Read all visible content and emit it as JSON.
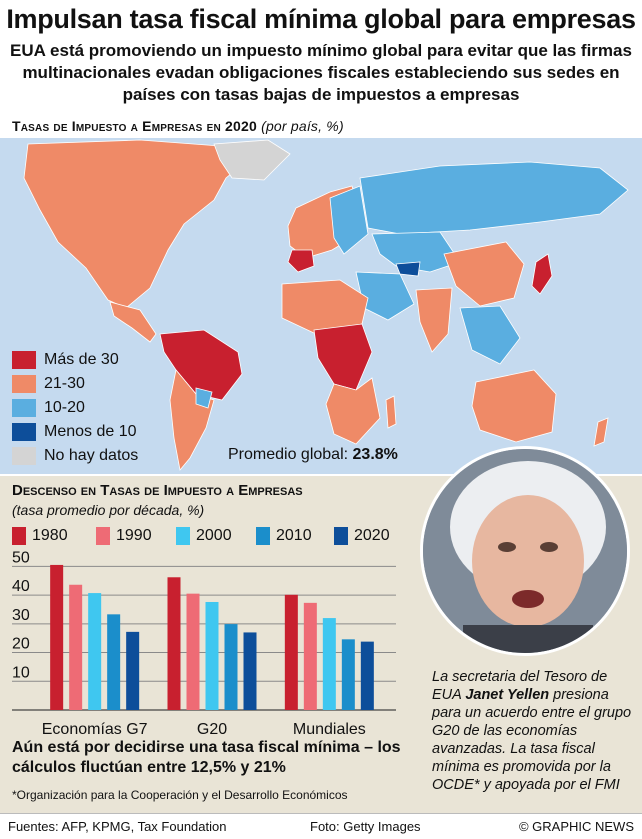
{
  "header": {
    "title": "Impulsan tasa fiscal mínima global para empresas",
    "subtitle": "EUA está promoviendo un impuesto mínimo global para evitar que las firmas multinacionales evadan obligaciones fiscales estableciendo sus sedes en países con tasas bajas de impuestos a empresas"
  },
  "map": {
    "title": "Tasas de Impuesto a Empresas en 2020",
    "title_note": "(por país, %)",
    "legend": [
      {
        "label": "Más de 30",
        "color": "#c8202f"
      },
      {
        "label": "21-30",
        "color": "#ef8a67"
      },
      {
        "label": "10-20",
        "color": "#5aaee0"
      },
      {
        "label": "Menos de 10",
        "color": "#0d4e9a"
      },
      {
        "label": "No hay datos",
        "color": "#d4d4d4"
      }
    ],
    "global_avg_label": "Promedio global:",
    "global_avg_value": "23.8%"
  },
  "chart_data": {
    "type": "bar",
    "title": "Descenso en Tasas de Impuesto a Empresas",
    "subtitle": "(tasa promedio por década, %)",
    "categories": [
      "Economías G7",
      "G20",
      "Mundiales"
    ],
    "series": [
      {
        "name": "1980",
        "color": "#c8202f",
        "values": [
          50.5,
          46.2,
          40.1
        ]
      },
      {
        "name": "1990",
        "color": "#ee6b75",
        "values": [
          43.6,
          40.5,
          37.3
        ]
      },
      {
        "name": "2000",
        "color": "#3fc7f0",
        "values": [
          40.7,
          37.6,
          32.0
        ]
      },
      {
        "name": "2010",
        "color": "#1b8ecb",
        "values": [
          33.3,
          29.9,
          24.6
        ]
      },
      {
        "name": "2020",
        "color": "#0d4e9a",
        "values": [
          27.2,
          27.0,
          23.8
        ]
      }
    ],
    "y_ticks": [
      10,
      20,
      30,
      40,
      50
    ],
    "ylim": [
      0,
      55
    ],
    "grid": true
  },
  "note": "Aún está por decidirse una tasa fiscal mínima – los cálculos fluctúan entre 12,5% y 21%",
  "footnote": "*Organización para la Cooperación y el Desarrollo Económicos",
  "caption": {
    "pre": "La secretaria del Tesoro de EUA ",
    "name": "Janet Yellen",
    "post": " presiona para un acuerdo entre el grupo G20 de las economías avanzadas. La tasa fiscal mínima es promovida por la OCDE* y apoyada por el FMI"
  },
  "footer": {
    "sources": "Fuentes: AFP, KPMG, Tax Foundation",
    "photo_credit": "Foto: Getty Images",
    "brand": "© GRAPHIC NEWS"
  }
}
